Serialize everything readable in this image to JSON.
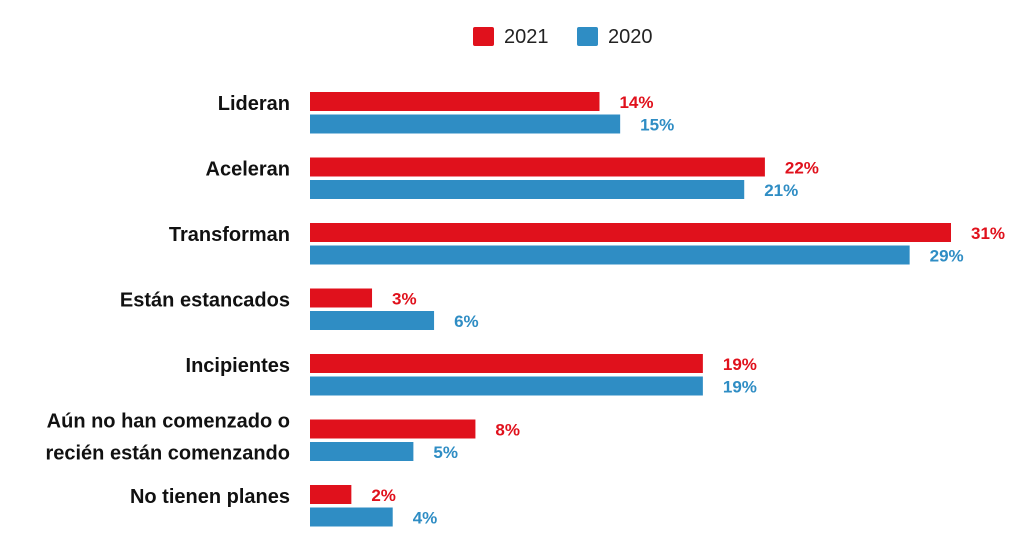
{
  "chart_data": {
    "type": "bar",
    "orientation": "horizontal",
    "categories": [
      [
        "Lideran"
      ],
      [
        "Aceleran"
      ],
      [
        "Transforman"
      ],
      [
        "Están estancados"
      ],
      [
        "Incipientes"
      ],
      [
        "Aún no han comenzado o",
        "recién están comenzando"
      ],
      [
        "No tienen planes"
      ]
    ],
    "series": [
      {
        "name": "2021",
        "color": "#e0111c",
        "values": [
          14,
          22,
          31,
          3,
          19,
          8,
          2
        ]
      },
      {
        "name": "2020",
        "color": "#2f8dc4",
        "values": [
          15,
          21,
          29,
          6,
          19,
          5,
          4
        ]
      }
    ],
    "value_suffix": "%",
    "xlim": [
      0,
      31
    ],
    "grid": false,
    "legend": "top-center"
  }
}
